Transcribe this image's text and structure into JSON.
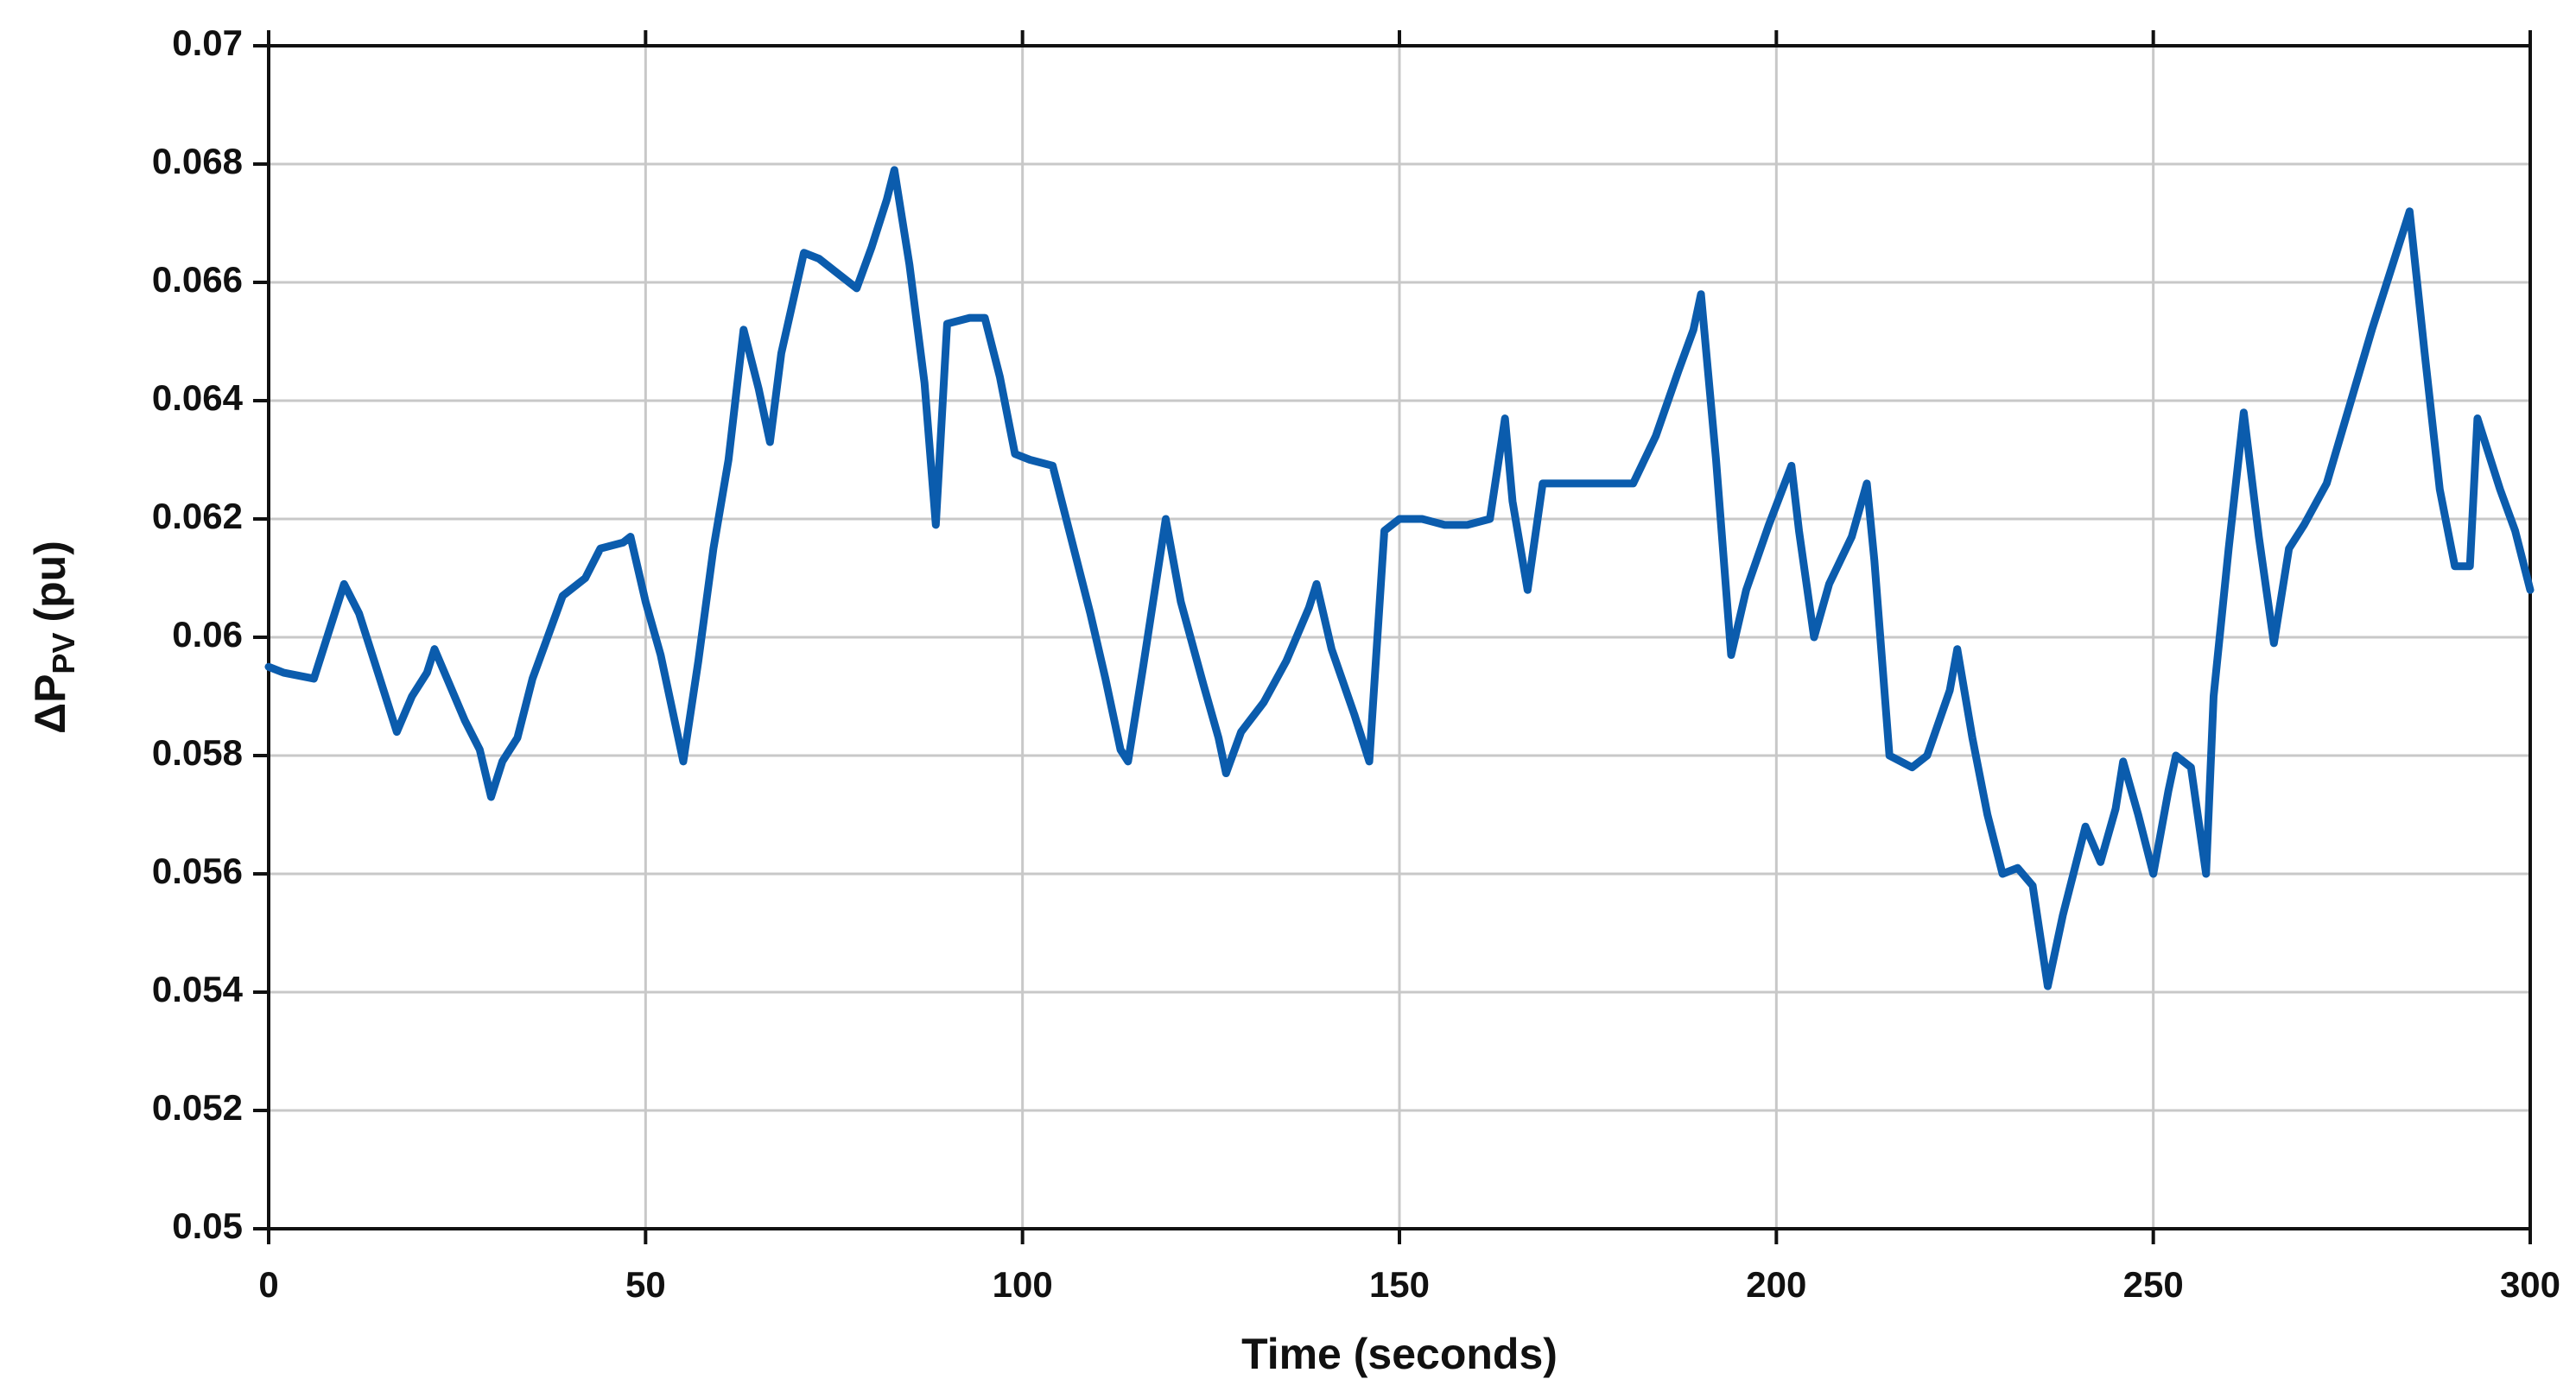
{
  "chart_data": {
    "type": "line",
    "x_label": "Time (seconds)",
    "y_label": {
      "main": "ΔP",
      "sub": "PV",
      "unit": "(pu)"
    },
    "xlim": [
      0,
      300
    ],
    "xticks": [
      0,
      50,
      100,
      150,
      200,
      250,
      300
    ],
    "ylim": [
      0.05,
      0.07
    ],
    "yticks": [
      0.05,
      0.052,
      0.054,
      0.056,
      0.058,
      0.06,
      0.062,
      0.064,
      0.066,
      0.068,
      0.07
    ],
    "grid": true,
    "series": [
      {
        "color": "#0b5cad",
        "x": [
          0,
          2,
          6,
          8,
          10,
          12,
          14,
          17,
          19,
          21,
          22,
          24,
          26,
          28,
          29.5,
          31,
          33,
          35,
          37,
          39,
          42,
          44,
          47,
          48,
          50,
          52,
          55,
          57,
          59,
          61,
          63,
          65,
          66.5,
          68,
          71,
          73,
          75,
          78,
          80,
          82,
          83,
          85,
          87,
          88.5,
          90,
          93,
          95,
          97,
          99,
          101,
          104,
          106,
          109,
          111,
          113,
          114,
          116,
          119,
          121,
          124,
          126,
          127,
          129,
          132,
          135,
          138,
          139,
          141,
          144,
          146,
          148,
          150,
          153,
          156,
          159,
          162,
          164,
          165,
          167,
          169,
          172,
          175,
          178,
          181,
          184,
          187,
          189,
          190,
          192,
          194,
          196,
          199,
          202,
          203,
          205,
          207,
          210,
          212,
          213,
          215,
          218,
          220,
          223,
          224,
          226,
          228,
          230,
          232,
          234,
          236,
          238,
          240,
          241,
          243,
          245,
          246,
          248,
          250,
          252,
          253,
          255,
          257,
          258,
          260,
          262,
          264,
          266,
          268,
          270,
          273,
          276,
          279,
          282,
          284,
          286,
          288,
          290,
          292,
          293,
          294,
          296,
          298,
          300
        ],
        "values": [
          0.0595,
          0.0594,
          0.0593,
          0.0601,
          0.0609,
          0.0604,
          0.0596,
          0.0584,
          0.059,
          0.0594,
          0.0598,
          0.0592,
          0.0586,
          0.0581,
          0.0573,
          0.0579,
          0.0583,
          0.0593,
          0.06,
          0.0607,
          0.061,
          0.0615,
          0.0616,
          0.0617,
          0.0606,
          0.0597,
          0.0579,
          0.0596,
          0.0615,
          0.063,
          0.0652,
          0.0642,
          0.0633,
          0.0648,
          0.0665,
          0.0664,
          0.0662,
          0.0659,
          0.0666,
          0.0674,
          0.0679,
          0.0663,
          0.0643,
          0.0619,
          0.0653,
          0.0654,
          0.0654,
          0.0644,
          0.0631,
          0.063,
          0.0629,
          0.0619,
          0.0604,
          0.0593,
          0.0581,
          0.0579,
          0.0595,
          0.062,
          0.0606,
          0.0592,
          0.0583,
          0.0577,
          0.0584,
          0.0589,
          0.0596,
          0.0605,
          0.0609,
          0.0598,
          0.0587,
          0.0579,
          0.0618,
          0.062,
          0.062,
          0.0619,
          0.0619,
          0.062,
          0.0637,
          0.0623,
          0.0608,
          0.0626,
          0.0626,
          0.0626,
          0.0626,
          0.0626,
          0.0634,
          0.0645,
          0.0652,
          0.0658,
          0.063,
          0.0597,
          0.0608,
          0.0619,
          0.0629,
          0.0618,
          0.06,
          0.0609,
          0.0617,
          0.0626,
          0.0613,
          0.058,
          0.0578,
          0.058,
          0.0591,
          0.0598,
          0.0583,
          0.057,
          0.056,
          0.0561,
          0.0558,
          0.0541,
          0.0553,
          0.0563,
          0.0568,
          0.0562,
          0.0571,
          0.0579,
          0.057,
          0.056,
          0.0574,
          0.058,
          0.0578,
          0.056,
          0.059,
          0.0615,
          0.0638,
          0.0617,
          0.0599,
          0.0615,
          0.0619,
          0.0626,
          0.0639,
          0.0652,
          0.0664,
          0.0672,
          0.0648,
          0.0625,
          0.0612,
          0.0612,
          0.0637,
          0.0633,
          0.0625,
          0.0618,
          0.0608
        ]
      }
    ]
  }
}
